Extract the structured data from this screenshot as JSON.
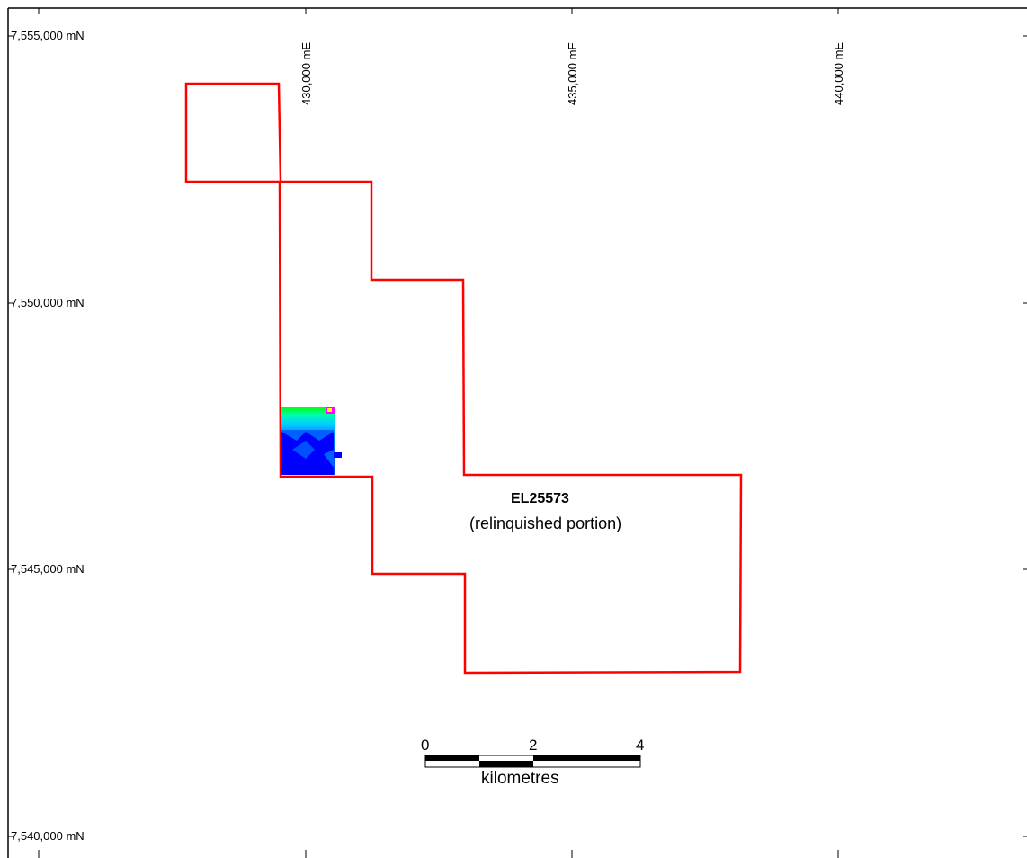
{
  "map": {
    "northing_labels": [
      "7,555,000 mN",
      "7,550,000 mN",
      "7,545,000 mN",
      "7,540,000 mN"
    ],
    "easting_labels": [
      "430,000 mE",
      "435,000 mE",
      "440,000 mE"
    ],
    "tenement": {
      "id": "EL25573",
      "description": "(relinquished portion)",
      "boundary_color": "#ff0000"
    },
    "scale_bar": {
      "ticks": [
        "0",
        "2",
        "4"
      ],
      "unit": "kilometres"
    },
    "colors": {
      "frame": "#000000",
      "boundary": "#ff0000",
      "anomaly_low": "#0000ff",
      "anomaly_mid": "#00c8ff",
      "anomaly_high": "#ff00ff"
    }
  }
}
